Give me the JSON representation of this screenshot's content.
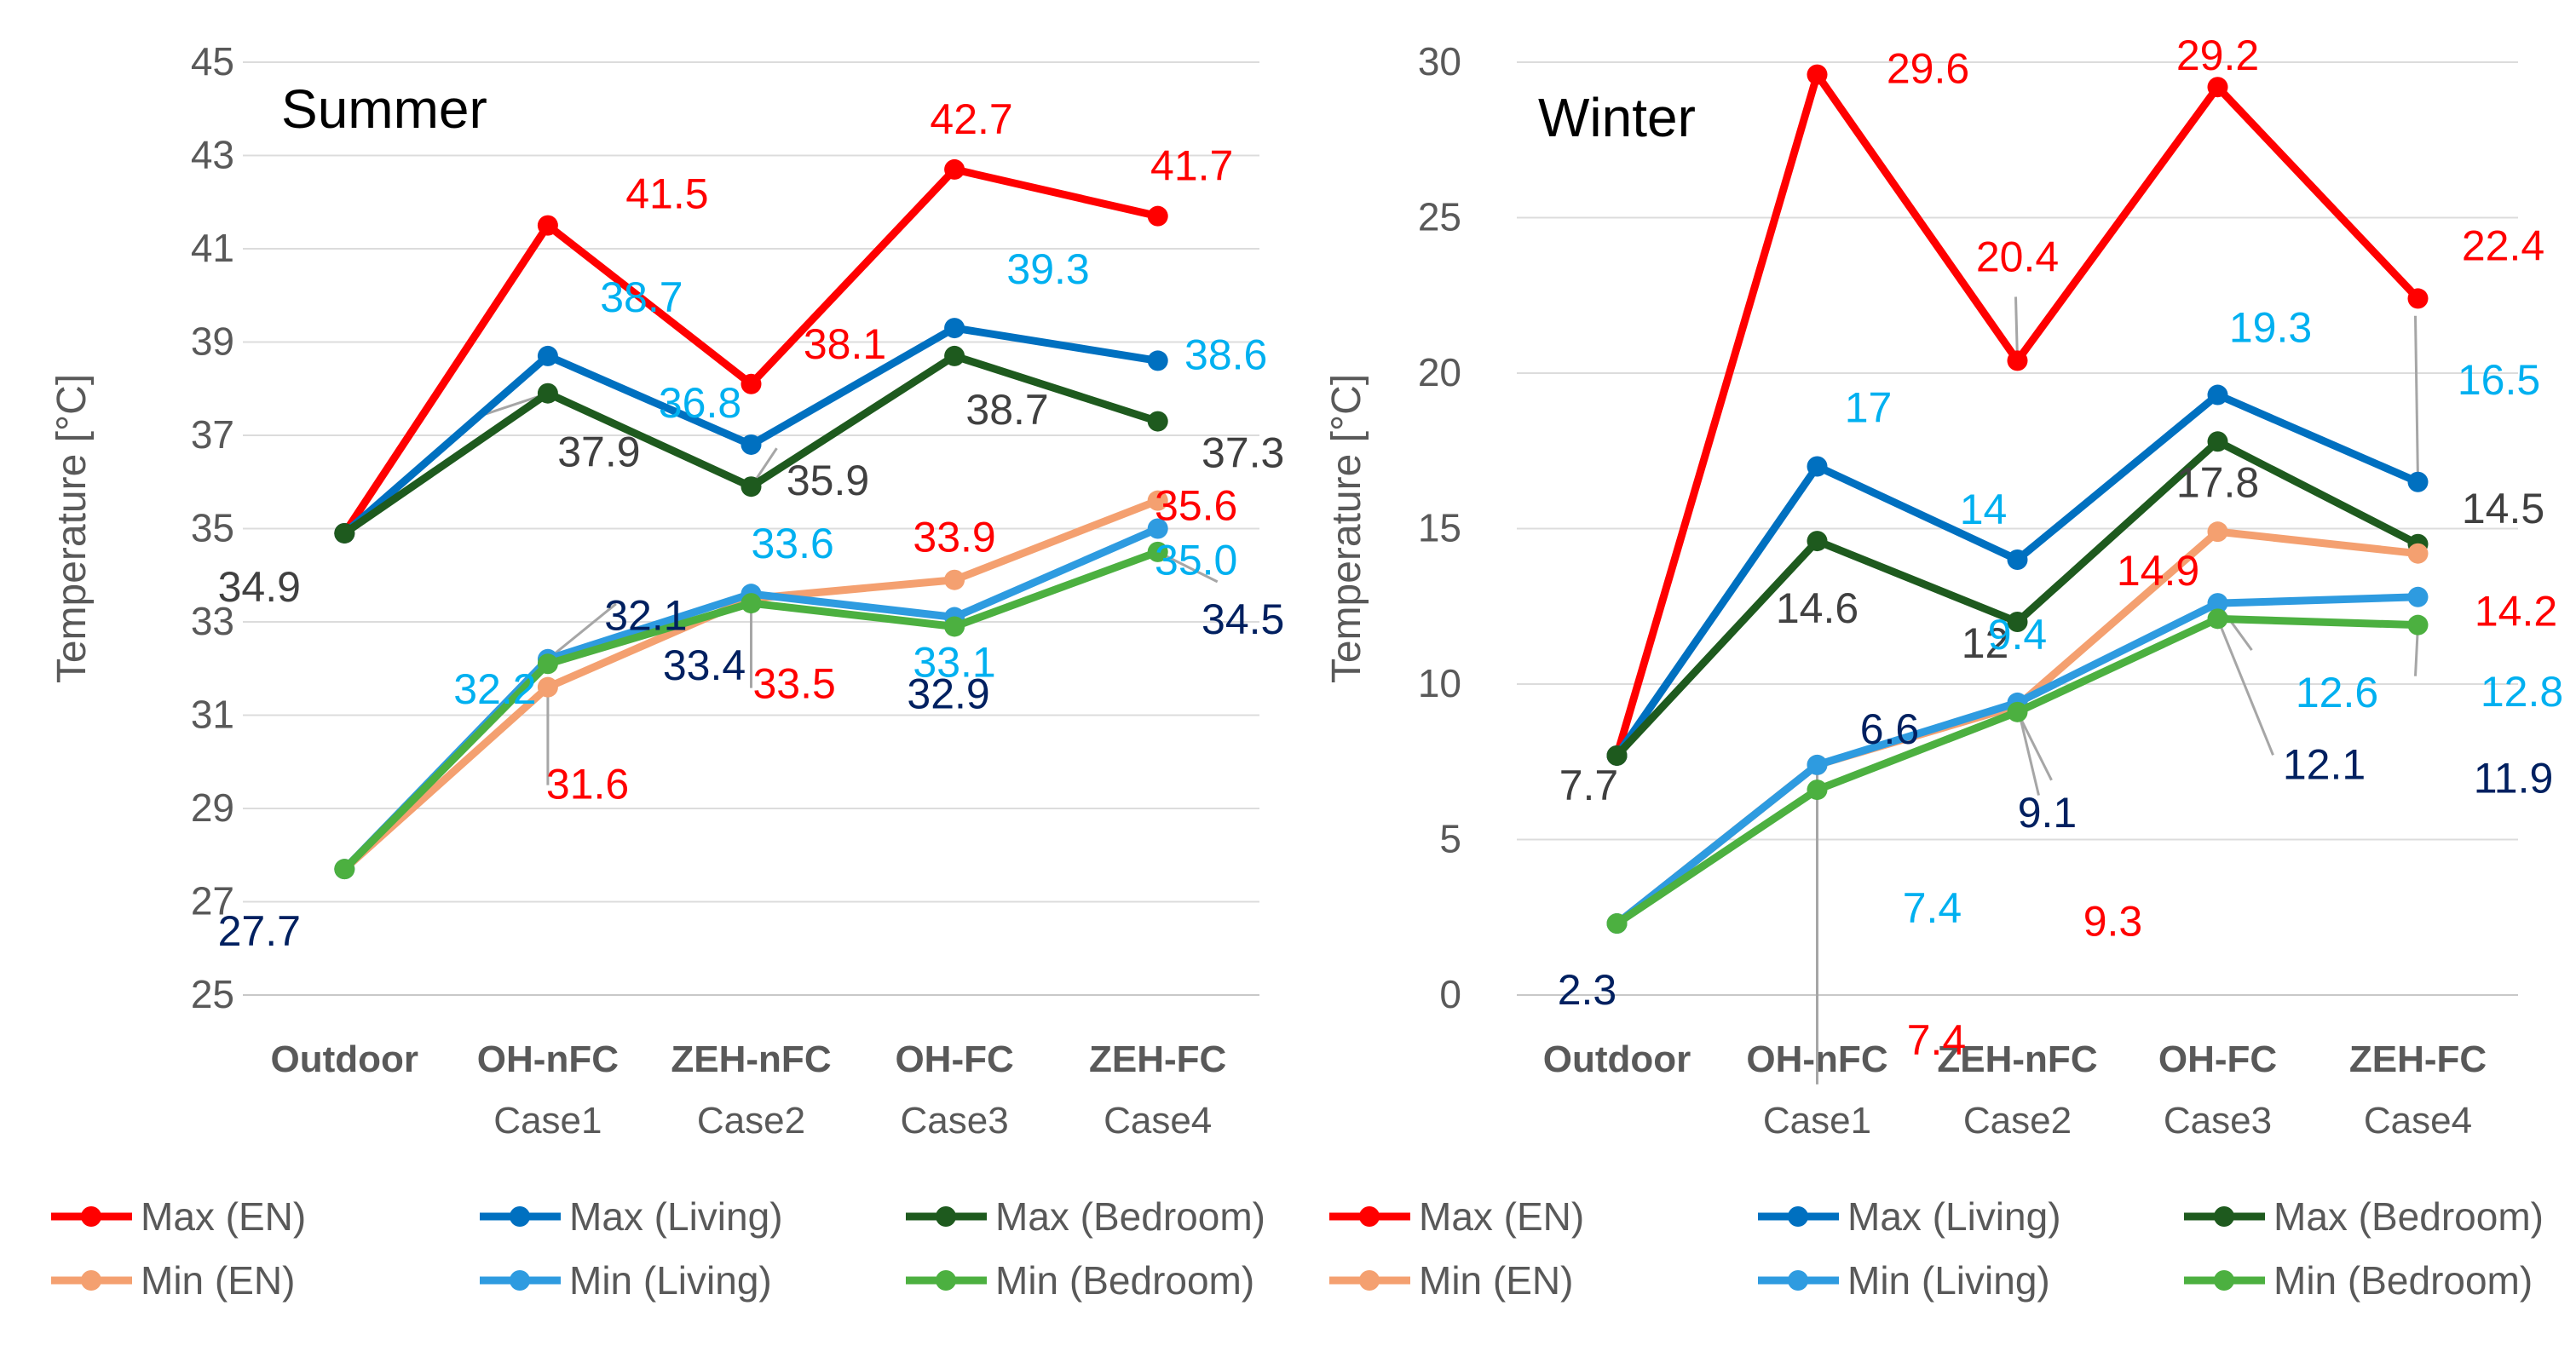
{
  "chart_data": [
    {
      "type": "line",
      "title": "Summer",
      "xlabel": "",
      "ylabel": "Temperature [°C]",
      "ylim": [
        25,
        45
      ],
      "yticks": [
        25,
        27,
        29,
        31,
        33,
        35,
        37,
        39,
        41,
        43,
        45
      ],
      "grid": true,
      "categories": [
        [
          "Outdoor"
        ],
        [
          "OH-nFC",
          "Case1"
        ],
        [
          "ZEH-nFC",
          "Case2"
        ],
        [
          "OH-FC",
          "Case3"
        ],
        [
          "ZEH-FC",
          "Case4"
        ]
      ],
      "series": [
        {
          "name": "Max (EN)",
          "color": "#ff0000",
          "values": [
            34.9,
            41.5,
            38.1,
            42.7,
            41.7
          ],
          "labels": [
            null,
            "41.5",
            "38.1",
            "42.7",
            "41.7"
          ],
          "label_color": "#ff0000"
        },
        {
          "name": "Max (Living)",
          "color": "#0070c0",
          "values": [
            34.9,
            38.7,
            36.8,
            39.3,
            38.6
          ],
          "labels": [
            null,
            "38.7",
            "36.8",
            "39.3",
            "38.6"
          ],
          "label_color": "#00b0f0"
        },
        {
          "name": "Max (Bedroom)",
          "color": "#1e5a1e",
          "values": [
            34.9,
            37.9,
            35.9,
            38.7,
            37.3
          ],
          "labels": [
            "34.9",
            "37.9",
            "35.9",
            "38.7",
            "37.3"
          ],
          "label_color": "#404040"
        },
        {
          "name": "Min (EN)",
          "color": "#f4a070",
          "values": [
            27.7,
            31.6,
            33.5,
            33.9,
            35.6
          ],
          "labels": [
            null,
            "31.6",
            "33.5",
            "33.9",
            "35.6"
          ],
          "label_color": "#ff0000"
        },
        {
          "name": "Min (Living)",
          "color": "#2e9be0",
          "values": [
            27.7,
            32.2,
            33.6,
            33.1,
            35.0
          ],
          "labels": [
            null,
            "32.2",
            "33.6",
            "33.1",
            "35.0"
          ],
          "label_color": "#00b0f0"
        },
        {
          "name": "Min (Bedroom)",
          "color": "#4cb040",
          "values": [
            27.7,
            32.1,
            33.4,
            32.9,
            34.5
          ],
          "labels": [
            "27.7",
            "32.1",
            "33.4",
            "32.9",
            "34.5"
          ],
          "label_color": "#002060"
        }
      ]
    },
    {
      "type": "line",
      "title": "Winter",
      "xlabel": "",
      "ylabel": "Temperature [°C]",
      "ylim": [
        0,
        30
      ],
      "yticks": [
        0,
        5,
        10,
        15,
        20,
        25,
        30
      ],
      "grid": true,
      "categories": [
        [
          "Outdoor"
        ],
        [
          "OH-nFC",
          "Case1"
        ],
        [
          "ZEH-nFC",
          "Case2"
        ],
        [
          "OH-FC",
          "Case3"
        ],
        [
          "ZEH-FC",
          "Case4"
        ]
      ],
      "series": [
        {
          "name": "Max (EN)",
          "color": "#ff0000",
          "values": [
            7.7,
            29.6,
            20.4,
            29.2,
            22.4
          ],
          "labels": [
            null,
            "29.6",
            "20.4",
            "29.2",
            "22.4"
          ],
          "label_color": "#ff0000"
        },
        {
          "name": "Max (Living)",
          "color": "#0070c0",
          "values": [
            7.7,
            17,
            14,
            19.3,
            16.5
          ],
          "labels": [
            null,
            "17",
            "14",
            "19.3",
            "16.5"
          ],
          "label_color": "#00b0f0"
        },
        {
          "name": "Max (Bedroom)",
          "color": "#1e5a1e",
          "values": [
            7.7,
            14.6,
            12,
            17.8,
            14.5
          ],
          "labels": [
            "7.7",
            "14.6",
            "12",
            "17.8",
            "14.5"
          ],
          "label_color": "#404040"
        },
        {
          "name": "Min (EN)",
          "color": "#f4a070",
          "values": [
            2.3,
            7.4,
            9.3,
            14.9,
            14.2
          ],
          "labels": [
            null,
            "7.4",
            "9.3",
            "14.9",
            "14.2"
          ],
          "label_color": "#ff0000"
        },
        {
          "name": "Min (Living)",
          "color": "#2e9be0",
          "values": [
            2.3,
            7.4,
            9.4,
            12.6,
            12.8
          ],
          "labels": [
            null,
            "7.4",
            "9.4",
            "12.6",
            "12.8"
          ],
          "label_color": "#00b0f0"
        },
        {
          "name": "Min (Bedroom)",
          "color": "#4cb040",
          "values": [
            2.3,
            6.6,
            9.1,
            12.1,
            11.9
          ],
          "labels": [
            "2.3",
            "6.6",
            "9.1",
            "12.1",
            "11.9"
          ],
          "label_color": "#002060"
        }
      ]
    }
  ]
}
